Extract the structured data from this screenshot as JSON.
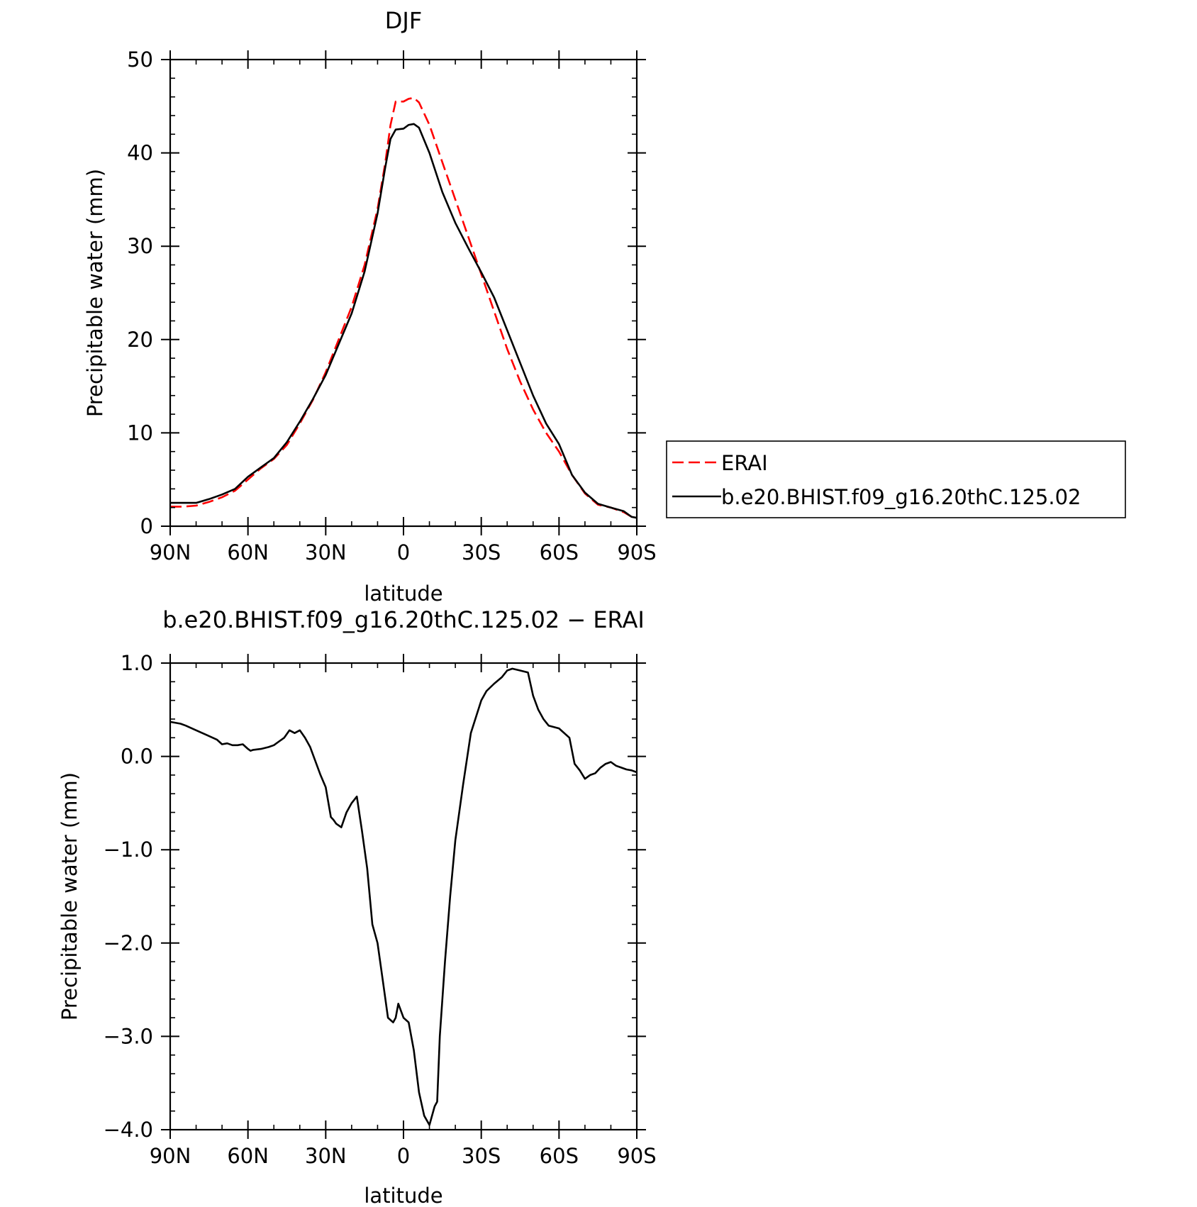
{
  "chart_data": [
    {
      "type": "line",
      "title": "DJF",
      "xlabel": "latitude",
      "ylabel": "Precipitable water (mm)",
      "x_tick_labels": [
        "90N",
        "60N",
        "30N",
        "0",
        "30S",
        "60S",
        "90S"
      ],
      "x_tick_values": [
        -90,
        -60,
        -30,
        0,
        30,
        60,
        90
      ],
      "xlim": [
        -90,
        90
      ],
      "y_tick_labels": [
        "0",
        "10",
        "20",
        "30",
        "40",
        "50"
      ],
      "y_tick_values": [
        0,
        10,
        20,
        30,
        40,
        50
      ],
      "ylim": [
        0,
        50
      ],
      "grid": false,
      "legend_position": "right",
      "series": [
        {
          "name": "ERAI",
          "color": "#ff0000",
          "dash": "dashed",
          "x": [
            -90,
            -85,
            -80,
            -75,
            -70,
            -65,
            -60,
            -55,
            -50,
            -45,
            -40,
            -35,
            -30,
            -25,
            -20,
            -15,
            -10,
            -7,
            -5,
            -3,
            0,
            2,
            4,
            6,
            10,
            15,
            20,
            25,
            30,
            35,
            40,
            45,
            50,
            55,
            60,
            65,
            70,
            75,
            80,
            85,
            88,
            90
          ],
          "y": [
            2.1,
            2.1,
            2.2,
            2.6,
            3.1,
            3.8,
            5.0,
            6.2,
            7.2,
            8.7,
            11.0,
            13.5,
            16.5,
            20.0,
            23.5,
            28.0,
            34.0,
            39.0,
            43.0,
            45.5,
            45.5,
            45.8,
            45.9,
            45.4,
            43.0,
            39.0,
            35.0,
            31.0,
            27.0,
            23.0,
            19.0,
            15.5,
            12.5,
            10.0,
            8.0,
            5.5,
            3.5,
            2.3,
            2.0,
            1.5,
            1.0,
            0.8
          ]
        },
        {
          "name": "b.e20.BHIST.f09_g16.20thC.125.02",
          "color": "#000000",
          "dash": "solid",
          "x": [
            -90,
            -85,
            -80,
            -75,
            -70,
            -65,
            -60,
            -55,
            -50,
            -45,
            -40,
            -35,
            -30,
            -25,
            -20,
            -15,
            -10,
            -7,
            -5,
            -3,
            0,
            2,
            4,
            6,
            10,
            15,
            20,
            25,
            30,
            35,
            40,
            45,
            50,
            55,
            60,
            65,
            70,
            75,
            80,
            85,
            88,
            90
          ],
          "y": [
            2.5,
            2.5,
            2.5,
            2.9,
            3.4,
            4.0,
            5.3,
            6.3,
            7.3,
            9.0,
            11.2,
            13.6,
            16.2,
            19.5,
            22.8,
            27.3,
            33.5,
            38.5,
            41.5,
            42.5,
            42.6,
            43.0,
            43.1,
            42.7,
            40.0,
            35.8,
            32.5,
            29.8,
            27.2,
            24.5,
            21.0,
            17.5,
            14.0,
            11.0,
            8.8,
            5.5,
            3.6,
            2.4,
            2.0,
            1.6,
            1.0,
            0.9
          ]
        }
      ]
    },
    {
      "type": "line",
      "title": "b.e20.BHIST.f09_g16.20thC.125.02 − ERAI",
      "xlabel": "latitude",
      "ylabel": "Precipitable water (mm)",
      "x_tick_labels": [
        "90N",
        "60N",
        "30N",
        "0",
        "30S",
        "60S",
        "90S"
      ],
      "x_tick_values": [
        -90,
        -60,
        -30,
        0,
        30,
        60,
        90
      ],
      "xlim": [
        -90,
        90
      ],
      "y_tick_labels": [
        "−4.0",
        "−3.0",
        "−2.0",
        "−1.0",
        "0.0",
        "1.0"
      ],
      "y_tick_values": [
        -4,
        -3,
        -2,
        -1,
        0,
        1
      ],
      "ylim": [
        -4,
        1
      ],
      "grid": false,
      "series": [
        {
          "color": "#000000",
          "dash": "solid",
          "x": [
            -90,
            -86,
            -84,
            -80,
            -76,
            -72,
            -70,
            -68,
            -66,
            -64,
            -62,
            -60,
            -59,
            -58,
            -55,
            -52,
            -50,
            -48,
            -46,
            -44,
            -42,
            -40,
            -38,
            -36,
            -34,
            -32,
            -30,
            -28,
            -27,
            -26,
            -24,
            -22,
            -20,
            -18,
            -16,
            -14,
            -12,
            -10,
            -8,
            -6,
            -4,
            -3,
            -2,
            0,
            2,
            4,
            6,
            8,
            10,
            12,
            13,
            14,
            16,
            18,
            20,
            23,
            26,
            30,
            32,
            35,
            38,
            40,
            42,
            45,
            48,
            50,
            52,
            54,
            56,
            60,
            64,
            66,
            68,
            70,
            72,
            74,
            76,
            78,
            80,
            82,
            84,
            86,
            88,
            90
          ],
          "y": [
            0.37,
            0.35,
            0.33,
            0.28,
            0.23,
            0.18,
            0.13,
            0.14,
            0.12,
            0.12,
            0.13,
            0.08,
            0.06,
            0.07,
            0.08,
            0.1,
            0.12,
            0.16,
            0.2,
            0.28,
            0.25,
            0.28,
            0.2,
            0.1,
            -0.05,
            -0.2,
            -0.33,
            -0.65,
            -0.68,
            -0.72,
            -0.76,
            -0.6,
            -0.5,
            -0.43,
            -0.8,
            -1.2,
            -1.8,
            -2.0,
            -2.4,
            -2.8,
            -2.85,
            -2.8,
            -2.65,
            -2.8,
            -2.85,
            -3.15,
            -3.6,
            -3.85,
            -3.95,
            -3.75,
            -3.7,
            -3.0,
            -2.2,
            -1.5,
            -0.9,
            -0.3,
            0.25,
            0.6,
            0.7,
            0.78,
            0.85,
            0.92,
            0.94,
            0.92,
            0.9,
            0.65,
            0.5,
            0.4,
            0.33,
            0.3,
            0.2,
            -0.08,
            -0.15,
            -0.24,
            -0.2,
            -0.18,
            -0.12,
            -0.08,
            -0.06,
            -0.1,
            -0.12,
            -0.14,
            -0.15,
            -0.17
          ]
        }
      ]
    }
  ]
}
